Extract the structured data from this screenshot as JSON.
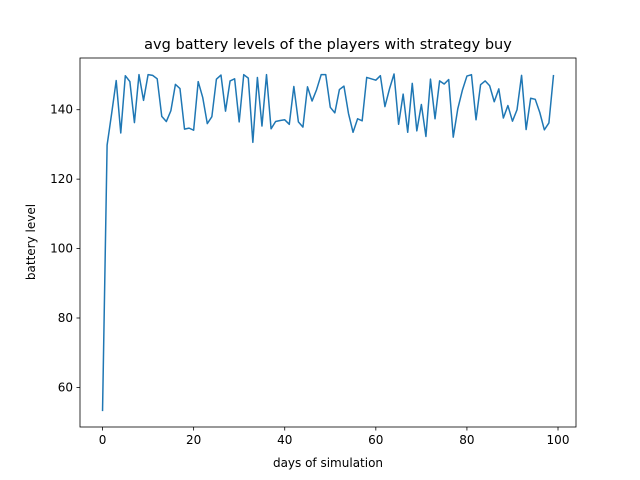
{
  "chart_data": {
    "type": "line",
    "title": "avg battery levels of the players with strategy buy",
    "xlabel": "days of simulation",
    "ylabel": "battery level",
    "xlim": [
      -4.95,
      103.95
    ],
    "ylim": [
      48.6,
      154.9
    ],
    "xticks": [
      0,
      20,
      40,
      60,
      80,
      100
    ],
    "yticks": [
      60,
      80,
      100,
      120,
      140
    ],
    "grid": false,
    "line_color": "#1f77b4",
    "series": [
      {
        "x": [
          0,
          1,
          2,
          3,
          4,
          5,
          6,
          7,
          8,
          9,
          10,
          11,
          12,
          13,
          14,
          15,
          16,
          17,
          18,
          19,
          20,
          21,
          22,
          23,
          24,
          25,
          26,
          27,
          28,
          29,
          30,
          31,
          32,
          33,
          34,
          35,
          36,
          37,
          38,
          39,
          40,
          41,
          42,
          43,
          44,
          45,
          46,
          47,
          48,
          49,
          50,
          51,
          52,
          53,
          54,
          55,
          56,
          57,
          58,
          59,
          60,
          61,
          62,
          63,
          64,
          65,
          66,
          67,
          68,
          69,
          70,
          71,
          72,
          73,
          74,
          75,
          76,
          77,
          78,
          79,
          80,
          81,
          82,
          83,
          84,
          85,
          86,
          87,
          88,
          89,
          90,
          91,
          92,
          93,
          94,
          95,
          96,
          97,
          98,
          99
        ],
        "values": [
          53.4,
          129.8,
          138.9,
          148.4,
          133.3,
          149.8,
          148.1,
          136.3,
          150.1,
          142.7,
          150.1,
          149.9,
          148.9,
          138.1,
          136.6,
          139.7,
          147.3,
          146.1,
          134.4,
          134.7,
          134.1,
          148.1,
          143.5,
          136.0,
          138.0,
          148.8,
          150.0,
          139.6,
          148.3,
          148.9,
          136.5,
          150.1,
          149.1,
          130.6,
          149.3,
          135.3,
          150.1,
          134.5,
          136.6,
          136.9,
          137.1,
          135.8,
          146.7,
          136.5,
          135.0,
          146.6,
          142.5,
          145.8,
          150.1,
          150.1,
          140.7,
          139.1,
          145.8,
          146.8,
          138.9,
          133.5,
          137.4,
          136.8,
          149.3,
          148.9,
          148.5,
          149.8,
          140.9,
          146.0,
          150.3,
          135.8,
          144.5,
          133.5,
          147.6,
          133.9,
          141.5,
          132.3,
          148.8,
          137.4,
          148.3,
          147.4,
          148.7,
          132.1,
          140.3,
          145.6,
          149.7,
          150.1,
          137.1,
          147.2,
          148.3,
          146.9,
          142.3,
          146.0,
          137.6,
          141.2,
          136.7,
          140.0,
          149.9,
          134.3,
          143.3,
          143.0,
          139.2,
          134.2,
          136.2,
          149.8
        ]
      }
    ]
  }
}
